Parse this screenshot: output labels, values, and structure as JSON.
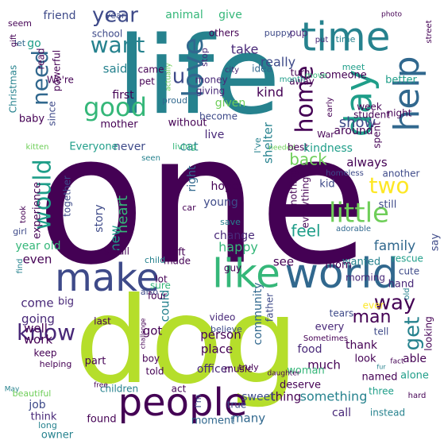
{
  "colors": {
    "background": "#ffffff",
    "palette": [
      "#440154",
      "#482878",
      "#3e4a89",
      "#31688e",
      "#26828e",
      "#1f9e89",
      "#35b779",
      "#6ece58",
      "#b5de2b",
      "#fde725"
    ]
  },
  "words": [
    {
      "text": "one",
      "color": "#440154"
    },
    {
      "text": "life",
      "color": "#26828e"
    },
    {
      "text": "dog",
      "color": "#b5de2b"
    },
    {
      "text": "like",
      "color": "#35b779"
    },
    {
      "text": "world",
      "color": "#31688e"
    },
    {
      "text": "make",
      "color": "#3e4a89"
    },
    {
      "text": "people",
      "color": "#440154"
    },
    {
      "text": "time",
      "color": "#26828e"
    },
    {
      "text": "day",
      "color": "#1f9e89"
    },
    {
      "text": "love",
      "color": "#31688e"
    },
    {
      "text": "help",
      "color": "#31688e"
    },
    {
      "text": "good",
      "color": "#35b779"
    },
    {
      "text": "little",
      "color": "#6ece58"
    },
    {
      "text": "home",
      "color": "#440154"
    },
    {
      "text": "year",
      "color": "#3e4a89"
    },
    {
      "text": "want",
      "color": "#26828e"
    },
    {
      "text": "u",
      "color": "#3e4a89"
    },
    {
      "text": "need",
      "color": "#31688e"
    },
    {
      "text": "would",
      "color": "#1f9e89"
    },
    {
      "text": "two",
      "color": "#fde725"
    },
    {
      "text": "way",
      "color": "#440154"
    },
    {
      "text": "man",
      "color": "#440154"
    },
    {
      "text": "get",
      "color": "#26828e"
    },
    {
      "text": "know",
      "color": "#482878"
    },
    {
      "text": "back",
      "color": "#6ece58"
    },
    {
      "text": "family",
      "color": "#31688e"
    },
    {
      "text": "feel",
      "color": "#1f9e89"
    },
    {
      "text": "heart",
      "color": "#35b779"
    },
    {
      "text": "show",
      "color": "#3e4a89"
    },
    {
      "text": "give",
      "color": "#35b779"
    },
    {
      "text": "animal",
      "color": "#35b779"
    },
    {
      "text": "friend",
      "color": "#3e4a89"
    },
    {
      "text": "said",
      "color": "#26828e"
    },
    {
      "text": "first",
      "color": "#440154"
    },
    {
      "text": "really",
      "color": "#3e4a89"
    },
    {
      "text": "take",
      "color": "#482878"
    },
    {
      "text": "kind",
      "color": "#440154"
    },
    {
      "text": "given",
      "color": "#6ece58"
    },
    {
      "text": "go",
      "color": "#1f9e89"
    },
    {
      "text": "let",
      "color": "#31688e"
    },
    {
      "text": "new",
      "color": "#1f9e89"
    },
    {
      "text": "story",
      "color": "#3e4a89"
    },
    {
      "text": "cat",
      "color": "#26828e"
    },
    {
      "text": "live",
      "color": "#482878"
    },
    {
      "text": "never",
      "color": "#3e4a89"
    },
    {
      "text": "right",
      "color": "#31688e"
    },
    {
      "text": "hope",
      "color": "#440154"
    },
    {
      "text": "young",
      "color": "#3e4a89"
    },
    {
      "text": "change",
      "color": "#482878"
    },
    {
      "text": "happy",
      "color": "#35b779"
    },
    {
      "text": "see",
      "color": "#440154"
    },
    {
      "text": "always",
      "color": "#440154"
    },
    {
      "text": "kid",
      "color": "#3e4a89"
    },
    {
      "text": "still",
      "color": "#3e4a89"
    },
    {
      "text": "say",
      "color": "#3e4a89"
    },
    {
      "text": "even",
      "color": "#440154"
    },
    {
      "text": "year old",
      "color": "#35b779"
    },
    {
      "text": "come",
      "color": "#482878"
    },
    {
      "text": "going",
      "color": "#482878"
    },
    {
      "text": "well",
      "color": "#440154"
    },
    {
      "text": "work",
      "color": "#440154"
    },
    {
      "text": "could",
      "color": "#26828e"
    },
    {
      "text": "got",
      "color": "#440154"
    },
    {
      "text": "place",
      "color": "#440154"
    },
    {
      "text": "person",
      "color": "#440154"
    },
    {
      "text": "community",
      "color": "#31688e"
    },
    {
      "text": "food",
      "color": "#482878"
    },
    {
      "text": "much",
      "color": "#440154"
    },
    {
      "text": "woman",
      "color": "#35b779"
    },
    {
      "text": "something",
      "color": "#26828e"
    },
    {
      "text": "thing",
      "color": "#440154"
    },
    {
      "text": "many",
      "color": "#31688e"
    },
    {
      "text": "officer",
      "color": "#482878"
    },
    {
      "text": "children",
      "color": "#26828e"
    },
    {
      "text": "job",
      "color": "#3e4a89"
    },
    {
      "text": "found",
      "color": "#440154"
    },
    {
      "text": "moment",
      "color": "#31688e"
    },
    {
      "text": "sweet",
      "color": "#3e4a89"
    },
    {
      "text": "true",
      "color": "#3e4a89"
    },
    {
      "text": "deserve",
      "color": "#440154"
    },
    {
      "text": "call",
      "color": "#482878"
    },
    {
      "text": "named",
      "color": "#440154"
    },
    {
      "text": "three",
      "color": "#1f9e89"
    },
    {
      "text": "instead",
      "color": "#26828e"
    },
    {
      "text": "able",
      "color": "#440154"
    },
    {
      "text": "alone",
      "color": "#1f9e89"
    },
    {
      "text": "hand",
      "color": "#482878"
    },
    {
      "text": "cute",
      "color": "#3e4a89"
    },
    {
      "text": "wanted",
      "color": "#26828e"
    },
    {
      "text": "mom",
      "color": "#440154"
    },
    {
      "text": "morning",
      "color": "#482878"
    },
    {
      "text": "thank",
      "color": "#440154"
    },
    {
      "text": "look",
      "color": "#440154"
    },
    {
      "text": "every",
      "color": "#482878"
    },
    {
      "text": "tell",
      "color": "#3e4a89"
    },
    {
      "text": "tears",
      "color": "#3e4a89"
    },
    {
      "text": "ever",
      "color": "#fde725"
    },
    {
      "text": "rescue",
      "color": "#1f9e89"
    },
    {
      "text": "looking",
      "color": "#440154"
    },
    {
      "text": "year",
      "color": "#3e4a89"
    },
    {
      "text": "time",
      "color": "#26828e"
    },
    {
      "text": "school",
      "color": "#3e4a89"
    },
    {
      "text": "others",
      "color": "#440154"
    },
    {
      "text": "puppy",
      "color": "#3e4a89"
    },
    {
      "text": "pup",
      "color": "#482878"
    },
    {
      "text": "meet",
      "color": "#1f9e89"
    },
    {
      "text": "better",
      "color": "#1f9e89"
    },
    {
      "text": "photo",
      "color": "#440154"
    },
    {
      "text": "street",
      "color": "#440154"
    },
    {
      "text": "someone",
      "color": "#440154"
    },
    {
      "text": "turn",
      "color": "#440154"
    },
    {
      "text": "move",
      "color": "#35b779"
    },
    {
      "text": "away",
      "color": "#440154"
    },
    {
      "text": "put",
      "color": "#482878"
    },
    {
      "text": "idea",
      "color": "#31688e"
    },
    {
      "text": "city",
      "color": "#482878"
    },
    {
      "text": "early",
      "color": "#440154"
    },
    {
      "text": "month",
      "color": "#1f9e89"
    },
    {
      "text": "night",
      "color": "#440154"
    },
    {
      "text": "week",
      "color": "#440154"
    },
    {
      "text": "student",
      "color": "#440154"
    },
    {
      "text": "around",
      "color": "#440154"
    },
    {
      "text": "War",
      "color": "#440154"
    },
    {
      "text": "proud",
      "color": "#31688e"
    },
    {
      "text": "money",
      "color": "#482878"
    },
    {
      "text": "giving",
      "color": "#482878"
    },
    {
      "text": "become",
      "color": "#3e4a89"
    },
    {
      "text": "mother",
      "color": "#440154"
    },
    {
      "text": "without",
      "color": "#440154"
    },
    {
      "text": "stop",
      "color": "#482878"
    },
    {
      "text": "pet",
      "color": "#440154"
    },
    {
      "text": "came",
      "color": "#440154"
    },
    {
      "text": "actually",
      "color": "#6ece58"
    },
    {
      "text": "We're",
      "color": "#440154"
    },
    {
      "text": "read",
      "color": "#440154"
    },
    {
      "text": "powerful",
      "color": "#440154"
    },
    {
      "text": "Christmas",
      "color": "#26828e"
    },
    {
      "text": "gift",
      "color": "#440154"
    },
    {
      "text": "seem",
      "color": "#440154"
    },
    {
      "text": "since",
      "color": "#3e4a89"
    },
    {
      "text": "baby",
      "color": "#440154"
    },
    {
      "text": "Everyone",
      "color": "#1f9e89"
    },
    {
      "text": "kitten",
      "color": "#6ece58"
    },
    {
      "text": "seen",
      "color": "#26828e"
    },
    {
      "text": "living",
      "color": "#35b779"
    },
    {
      "text": "shelter",
      "color": "#26828e"
    },
    {
      "text": "I've",
      "color": "#26828e"
    },
    {
      "text": "needed",
      "color": "#6ece58"
    },
    {
      "text": "best",
      "color": "#440154"
    },
    {
      "text": "kindness",
      "color": "#1f9e89"
    },
    {
      "text": "spent",
      "color": "#440154"
    },
    {
      "text": "another",
      "color": "#3e4a89"
    },
    {
      "text": "homeless",
      "color": "#3e4a89"
    },
    {
      "text": "adorable",
      "color": "#31688e"
    },
    {
      "text": "nothing",
      "color": "#440154"
    },
    {
      "text": "everything",
      "color": "#440154"
    },
    {
      "text": "experience",
      "color": "#440154"
    },
    {
      "text": "together",
      "color": "#3e4a89"
    },
    {
      "text": "took",
      "color": "#440154"
    },
    {
      "text": "girl",
      "color": "#3e4a89"
    },
    {
      "text": "car",
      "color": "#440154"
    },
    {
      "text": "small",
      "color": "#440154"
    },
    {
      "text": "left",
      "color": "#440154"
    },
    {
      "text": "made",
      "color": "#440154"
    },
    {
      "text": "save",
      "color": "#26828e"
    },
    {
      "text": "guy",
      "color": "#440154"
    },
    {
      "text": "father",
      "color": "#3e4a89"
    },
    {
      "text": "child",
      "color": "#26828e"
    },
    {
      "text": "sure",
      "color": "#35b779"
    },
    {
      "text": "lot",
      "color": "#440154"
    },
    {
      "text": "find",
      "color": "#26828e"
    },
    {
      "text": "old",
      "color": "#26828e"
    },
    {
      "text": "also",
      "color": "#3e4a89"
    },
    {
      "text": "four",
      "color": "#440154"
    },
    {
      "text": "big",
      "color": "#482878"
    },
    {
      "text": "keep",
      "color": "#440154"
    },
    {
      "text": "last",
      "color": "#440154"
    },
    {
      "text": "video",
      "color": "#482878"
    },
    {
      "text": "believe",
      "color": "#3e4a89"
    },
    {
      "text": "challenge",
      "color": "#440154"
    },
    {
      "text": "Sometimes",
      "color": "#440154"
    },
    {
      "text": "helping",
      "color": "#440154"
    },
    {
      "text": "part",
      "color": "#440154"
    },
    {
      "text": "boy",
      "color": "#440154"
    },
    {
      "text": "truly",
      "color": "#440154"
    },
    {
      "text": "free",
      "color": "#440154"
    },
    {
      "text": "May",
      "color": "#26828e"
    },
    {
      "text": "beautiful",
      "color": "#6ece58"
    },
    {
      "text": "think",
      "color": "#482878"
    },
    {
      "text": "long",
      "color": "#26828e"
    },
    {
      "text": "owner",
      "color": "#26828e"
    },
    {
      "text": "told",
      "color": "#440154"
    },
    {
      "text": "act",
      "color": "#440154"
    },
    {
      "text": "music",
      "color": "#440154"
    },
    {
      "text": "daughter",
      "color": "#440154"
    },
    {
      "text": "I'm",
      "color": "#3e4a89"
    },
    {
      "text": "fact",
      "color": "#440154"
    },
    {
      "text": "fur",
      "color": "#26828e"
    },
    {
      "text": "hard",
      "color": "#440154"
    }
  ]
}
